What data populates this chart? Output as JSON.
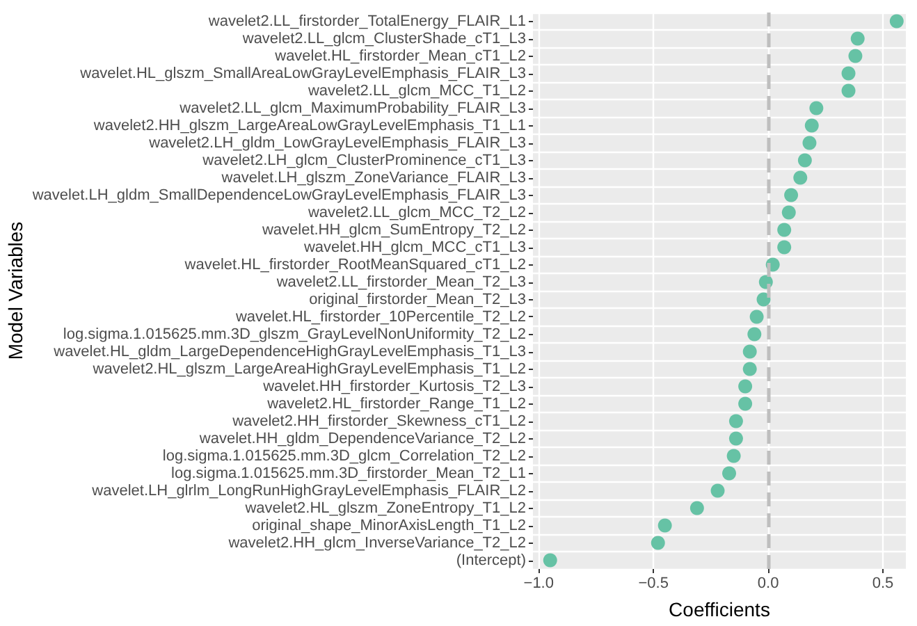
{
  "chart_data": {
    "type": "scatter",
    "orientation": "horizontal",
    "xlabel": "Coefficients",
    "ylabel": "Model Variables",
    "categories": [
      "wavelet2.LL_firstorder_TotalEnergy_FLAIR_L1",
      "wavelet2.LL_glcm_ClusterShade_cT1_L3",
      "wavelet.HL_firstorder_Mean_cT1_L2",
      "wavelet.HL_glszm_SmallAreaLowGrayLevelEmphasis_FLAIR_L3",
      "wavelet2.LL_glcm_MCC_T1_L2",
      "wavelet2.LL_glcm_MaximumProbability_FLAIR_L3",
      "wavelet2.HH_glszm_LargeAreaLowGrayLevelEmphasis_T1_L1",
      "wavelet2.LH_gldm_LowGrayLevelEmphasis_FLAIR_L3",
      "wavelet2.LH_glcm_ClusterProminence_cT1_L3",
      "wavelet.LH_glszm_ZoneVariance_FLAIR_L3",
      "wavelet.LH_gldm_SmallDependenceLowGrayLevelEmphasis_FLAIR_L3",
      "wavelet2.LL_glcm_MCC_T2_L2",
      "wavelet.HH_glcm_SumEntropy_T2_L2",
      "wavelet.HH_glcm_MCC_cT1_L3",
      "wavelet.HL_firstorder_RootMeanSquared_cT1_L2",
      "wavelet2.LL_firstorder_Mean_T2_L3",
      "original_firstorder_Mean_T2_L3",
      "wavelet.HL_firstorder_10Percentile_T2_L2",
      "log.sigma.1.015625.mm.3D_glszm_GrayLevelNonUniformity_T2_L2",
      "wavelet.HL_gldm_LargeDependenceHighGrayLevelEmphasis_T1_L3",
      "wavelet2.HL_glszm_LargeAreaHighGrayLevelEmphasis_T1_L2",
      "wavelet.HH_firstorder_Kurtosis_T2_L3",
      "wavelet2.HL_firstorder_Range_T1_L2",
      "wavelet2.HH_firstorder_Skewness_cT1_L2",
      "wavelet.HH_gldm_DependenceVariance_T2_L2",
      "log.sigma.1.015625.mm.3D_glcm_Correlation_T2_L2",
      "log.sigma.1.015625.mm.3D_firstorder_Mean_T2_L1",
      "wavelet.LH_glrlm_LongRunHighGrayLevelEmphasis_FLAIR_L2",
      "wavelet2.HL_glszm_ZoneEntropy_T1_L2",
      "original_shape_MinorAxisLength_T1_L2",
      "wavelet2.HH_glcm_InverseVariance_T2_L2",
      "(Intercept)"
    ],
    "values": [
      0.56,
      0.39,
      0.38,
      0.35,
      0.35,
      0.21,
      0.19,
      0.18,
      0.16,
      0.14,
      0.1,
      0.09,
      0.07,
      0.07,
      0.02,
      -0.01,
      -0.02,
      -0.05,
      -0.06,
      -0.08,
      -0.08,
      -0.1,
      -0.1,
      -0.14,
      -0.14,
      -0.15,
      -0.17,
      -0.22,
      -0.31,
      -0.45,
      -0.48,
      -0.95
    ],
    "color": "#66c2a5",
    "marker": "circle",
    "xlim": [
      -1.025,
      0.6
    ],
    "xticks": [
      {
        "value": -1,
        "label": "−1.0"
      },
      {
        "value": -0.5,
        "label": "−0.5"
      },
      {
        "value": 0,
        "label": "0.0"
      },
      {
        "value": 0.5,
        "label": "0.5"
      }
    ],
    "ref_lines": [
      {
        "axis": "x",
        "value": 0,
        "color": "#bebebe",
        "line_style": "dashed"
      }
    ],
    "grid": true
  }
}
